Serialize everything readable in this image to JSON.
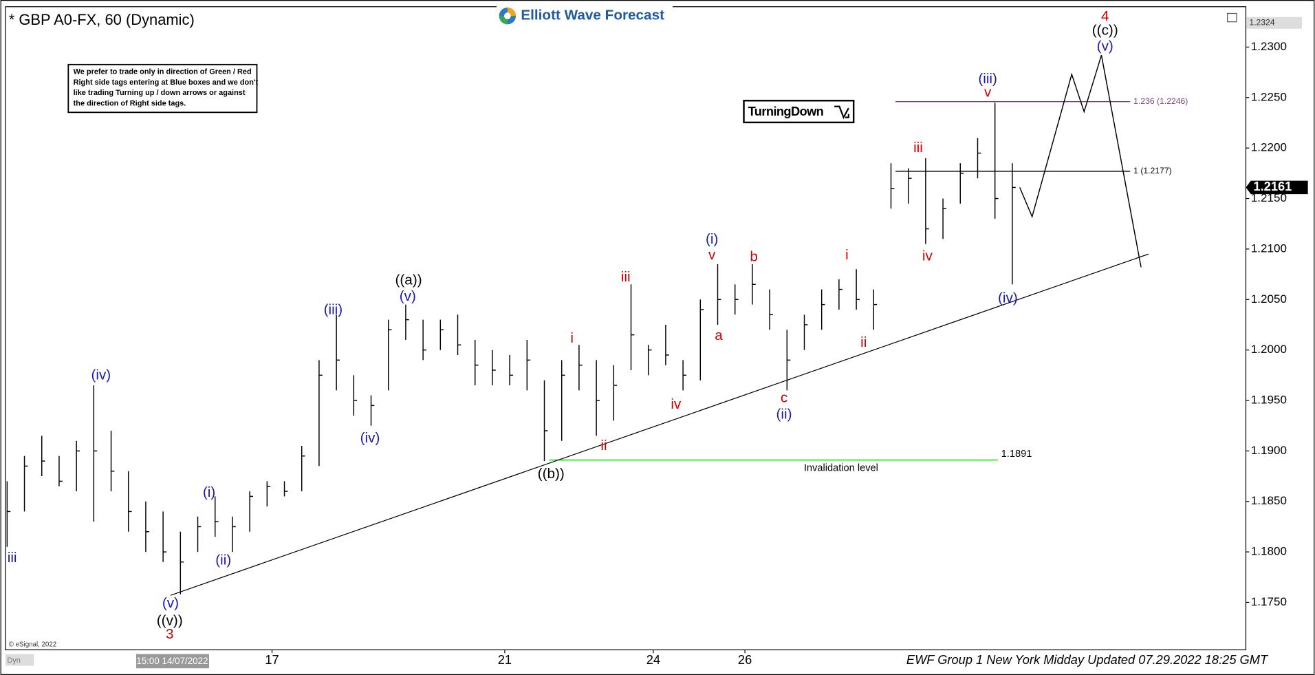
{
  "chart_data": {
    "type": "ohlc",
    "title": "* GBP A0-FX, 60 (Dynamic)",
    "brand": "Elliott Wave Forecast",
    "note_lines": [
      "We prefer to trade only in direction of Green / Red",
      "Right side tags entering at Blue boxes and we don't",
      "like trading Turning up / down arrows or against",
      "the direction of Right side tags."
    ],
    "signal": "TurningDown",
    "copyright": "© eSignal, 2022",
    "cursor_label": "15:00 14/07/2022",
    "mode_label": "Dyn",
    "footer": "EWF Group 1 New York Midday Updated 07.29.2022 18:25 GMT",
    "xlim": [
      0,
      500
    ],
    "ylim": [
      1.1703,
      1.234
    ],
    "xticks": [
      {
        "value": 107,
        "label": "17"
      },
      {
        "value": 201,
        "label": "21"
      },
      {
        "value": 261,
        "label": "24"
      },
      {
        "value": 298,
        "label": "26"
      }
    ],
    "yticks": [
      {
        "value": 1.175,
        "label": "1.1750"
      },
      {
        "value": 1.18,
        "label": "1.1800"
      },
      {
        "value": 1.185,
        "label": "1.1850"
      },
      {
        "value": 1.19,
        "label": "1.1900"
      },
      {
        "value": 1.195,
        "label": "1.1950"
      },
      {
        "value": 1.2,
        "label": "1.2000"
      },
      {
        "value": 1.205,
        "label": "1.2050"
      },
      {
        "value": 1.21,
        "label": "1.2100"
      },
      {
        "value": 1.215,
        "label": "1.2150"
      },
      {
        "value": 1.22,
        "label": "1.2200"
      },
      {
        "value": 1.225,
        "label": "1.2250"
      },
      {
        "value": 1.23,
        "label": "1.2300"
      }
    ],
    "high_marker": 1.2324,
    "current_price": 1.2161,
    "color": "#000000",
    "x": [
      0,
      7,
      14,
      21,
      28,
      35,
      42,
      49,
      56,
      63,
      70,
      77,
      84,
      91,
      98,
      105,
      112,
      119,
      126,
      133,
      140,
      147,
      154,
      161,
      168,
      175,
      182,
      189,
      196,
      203,
      210,
      217,
      224,
      231,
      238,
      245,
      252,
      259,
      266,
      273,
      280,
      287,
      294,
      301,
      308,
      315,
      322,
      329,
      336,
      343,
      350,
      357,
      364,
      371,
      378,
      385,
      392,
      399,
      406
    ],
    "high": [
      1.187,
      1.1895,
      1.1915,
      1.1895,
      1.191,
      1.1965,
      1.192,
      1.188,
      1.185,
      1.184,
      1.182,
      1.1835,
      1.1855,
      1.1835,
      1.186,
      1.187,
      1.187,
      1.1905,
      1.199,
      1.2035,
      1.1975,
      1.1955,
      1.203,
      1.2045,
      1.203,
      1.203,
      1.2035,
      1.201,
      1.2,
      1.1995,
      1.201,
      1.197,
      1.199,
      1.2005,
      1.199,
      1.1985,
      1.2065,
      1.2005,
      1.2025,
      1.199,
      1.205,
      1.2085,
      1.2065,
      1.2085,
      1.206,
      1.202,
      1.2035,
      1.206,
      1.207,
      1.208,
      1.206,
      1.2185,
      1.218,
      1.219,
      1.215,
      1.2185,
      1.221,
      1.2245,
      1.2185
    ],
    "low": [
      1.1805,
      1.184,
      1.1875,
      1.1865,
      1.186,
      1.183,
      1.186,
      1.182,
      1.18,
      1.179,
      1.1758,
      1.18,
      1.1815,
      1.18,
      1.182,
      1.1845,
      1.1855,
      1.186,
      1.1885,
      1.196,
      1.1935,
      1.1925,
      1.196,
      1.201,
      1.199,
      1.2,
      1.1995,
      1.1965,
      1.1965,
      1.1965,
      1.196,
      1.189,
      1.191,
      1.196,
      1.1915,
      1.193,
      1.198,
      1.1975,
      1.1985,
      1.196,
      1.197,
      1.2025,
      1.2035,
      1.2045,
      1.202,
      1.196,
      1.2,
      1.202,
      1.204,
      1.204,
      1.202,
      1.214,
      1.2145,
      1.2105,
      1.211,
      1.2145,
      1.217,
      1.213,
      1.2065
    ],
    "close": [
      1.184,
      1.1885,
      1.189,
      1.187,
      1.19,
      1.19,
      1.188,
      1.184,
      1.182,
      1.18,
      1.179,
      1.1825,
      1.183,
      1.1825,
      1.1855,
      1.1865,
      1.186,
      1.1895,
      1.1975,
      1.199,
      1.195,
      1.1945,
      1.202,
      1.203,
      1.2,
      1.202,
      1.2005,
      1.1985,
      1.198,
      1.1975,
      1.199,
      1.192,
      1.1975,
      1.1985,
      1.195,
      1.1965,
      1.2015,
      1.2,
      1.1995,
      1.1975,
      1.204,
      1.205,
      1.205,
      1.2065,
      1.2035,
      1.199,
      1.2025,
      1.2045,
      1.206,
      1.205,
      1.2045,
      1.216,
      1.217,
      1.212,
      1.214,
      1.2175,
      1.2195,
      1.215,
      1.2161
    ],
    "projection": {
      "x": [
        409,
        414,
        430,
        435,
        442,
        458
      ],
      "values": [
        1.2161,
        1.2132,
        1.2273,
        1.2236,
        1.2292,
        1.2082
      ]
    },
    "trendline": {
      "x": [
        66,
        461
      ],
      "values": [
        1.1757,
        1.2095
      ]
    },
    "levels": [
      {
        "value": 1.2246,
        "label": "1.236 (1.2246)",
        "color": "#7b3f7b"
      },
      {
        "value": 1.2177,
        "label": "1 (1.2177)",
        "color": "#000000"
      }
    ],
    "invalidation": {
      "value": 1.1891,
      "caption": "Invalidation level",
      "color": "#22dd22"
    },
    "wave_labels": [
      {
        "text": "iii",
        "color": "#1a1aa6"
      },
      {
        "text": "(iv)",
        "color": "#1a1aa6"
      },
      {
        "text": "(i)",
        "color": "#1a1aa6"
      },
      {
        "text": "(ii)",
        "color": "#1a1aa6"
      },
      {
        "text": "(v)",
        "color": "#1a1aa6"
      },
      {
        "text": "((v))",
        "color": "#000000"
      },
      {
        "text": "3",
        "color": "#d00000"
      },
      {
        "text": "(iii)",
        "color": "#1a1aa6"
      },
      {
        "text": "(iv)",
        "color": "#1a1aa6"
      },
      {
        "text": "((a))",
        "color": "#000000"
      },
      {
        "text": "(v)",
        "color": "#1a1aa6"
      },
      {
        "text": "((b))",
        "color": "#000000"
      },
      {
        "text": "i",
        "color": "#d00000"
      },
      {
        "text": "ii",
        "color": "#d00000"
      },
      {
        "text": "iii",
        "color": "#d00000"
      },
      {
        "text": "iv",
        "color": "#d00000"
      },
      {
        "text": "(i)",
        "color": "#1a1aa6"
      },
      {
        "text": "v",
        "color": "#d00000"
      },
      {
        "text": "a",
        "color": "#d00000"
      },
      {
        "text": "b",
        "color": "#d00000"
      },
      {
        "text": "c",
        "color": "#d00000"
      },
      {
        "text": "(ii)",
        "color": "#1a1aa6"
      },
      {
        "text": "i",
        "color": "#d00000"
      },
      {
        "text": "ii",
        "color": "#d00000"
      },
      {
        "text": "iii",
        "color": "#d00000"
      },
      {
        "text": "iv",
        "color": "#d00000"
      },
      {
        "text": "(iii)",
        "color": "#1a1aa6"
      },
      {
        "text": "v",
        "color": "#d00000"
      },
      {
        "text": "(iv)",
        "color": "#1a1aa6"
      },
      {
        "text": "4",
        "color": "#d00000"
      },
      {
        "text": "((c))",
        "color": "#000000"
      },
      {
        "text": "(v)",
        "color": "#1a1aa6"
      }
    ]
  }
}
